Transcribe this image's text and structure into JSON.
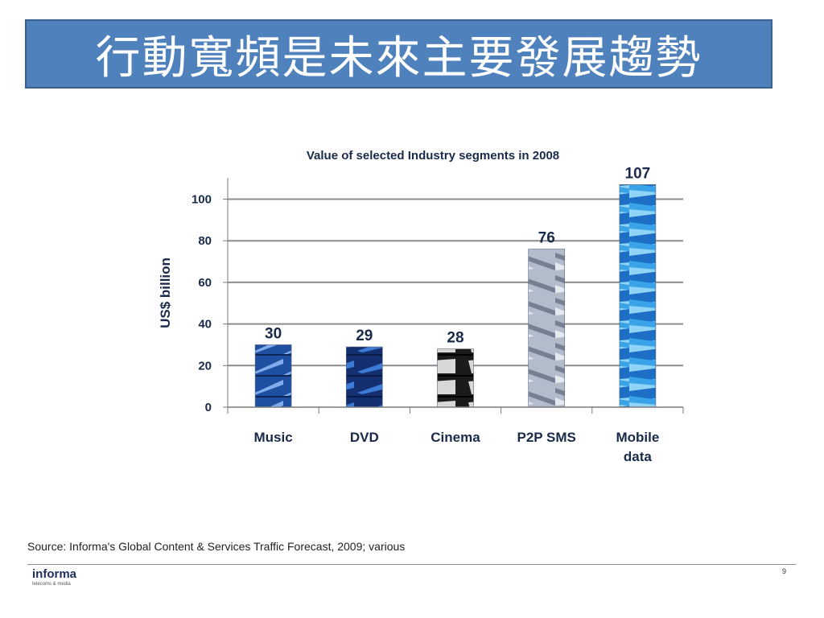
{
  "slide": {
    "title": "行動寬頻是未來主要發展趨勢",
    "source": "Source: Informa's Global Content & Services Traffic Forecast, 2009; various",
    "logo_word": "informa",
    "logo_tagline": "telecoms & media",
    "page_number": "9"
  },
  "colors": {
    "banner": "#4f81bd",
    "gridline": "#8c8c8c",
    "music_bar": "#2b5aa8",
    "dvd_bar": "#1c3f8c",
    "cinema_bar": "#3a3a3a",
    "p2p_sms_bar": "#a9b2c2",
    "mobile_data_bar": "#2e8fd6"
  },
  "chart_data": {
    "type": "bar",
    "title": "Value of selected Industry segments in 2008",
    "xlabel": "",
    "ylabel": "US$ billion",
    "ylim": [
      0,
      110
    ],
    "yticks": [
      0,
      20,
      40,
      60,
      80,
      100
    ],
    "grid": true,
    "categories": [
      {
        "lines": [
          "Music"
        ]
      },
      {
        "lines": [
          "DVD"
        ]
      },
      {
        "lines": [
          "Cinema"
        ]
      },
      {
        "lines": [
          "P2P SMS"
        ]
      },
      {
        "lines": [
          "Mobile",
          "data"
        ]
      }
    ],
    "values": [
      30,
      29,
      28,
      76,
      107
    ],
    "data_labels": [
      "30",
      "29",
      "28",
      "76",
      "107"
    ]
  }
}
